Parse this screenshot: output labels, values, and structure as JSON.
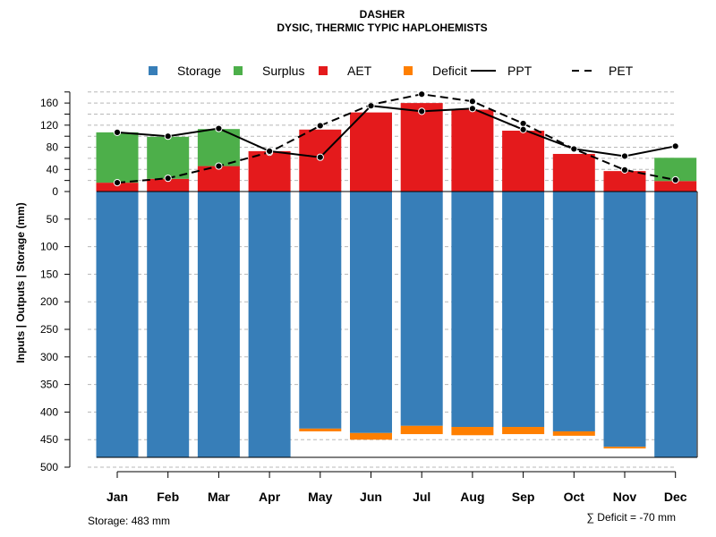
{
  "chart_data": {
    "type": "bar",
    "title": "DASHER",
    "subtitle": "DYSIC, THERMIC TYPIC HAPLOHEMISTS",
    "ylabel": "Inputs | Outputs | Storage    (mm)",
    "categories": [
      "Jan",
      "Feb",
      "Mar",
      "Apr",
      "May",
      "Jun",
      "Jul",
      "Aug",
      "Sep",
      "Oct",
      "Nov",
      "Dec"
    ],
    "ylim_upper": [
      0,
      180
    ],
    "ylim_lower": [
      0,
      500
    ],
    "upper_ticks": [
      0,
      40,
      80,
      120,
      160
    ],
    "upper_tick_labels": [
      "0",
      "40",
      "80",
      "120",
      "160"
    ],
    "lower_ticks": [
      0,
      50,
      100,
      150,
      200,
      250,
      300,
      350,
      400,
      450,
      500
    ],
    "lower_tick_labels": [
      "0",
      "50",
      "100",
      "150",
      "200",
      "250",
      "300",
      "350",
      "400",
      "450",
      "500"
    ],
    "upper_gridlines": [
      20,
      60,
      100,
      140,
      180
    ],
    "legend": {
      "placement": "top",
      "entries": [
        {
          "label": "Storage",
          "kind": "box",
          "color": "#377eb8"
        },
        {
          "label": "Surplus",
          "kind": "box",
          "color": "#4daf4a"
        },
        {
          "label": "AET",
          "kind": "box",
          "color": "#e41a1c"
        },
        {
          "label": "Deficit",
          "kind": "box",
          "color": "#ff7f00"
        },
        {
          "label": "PPT",
          "kind": "line",
          "dash": "solid"
        },
        {
          "label": "PET",
          "kind": "line",
          "dash": "dashed"
        }
      ]
    },
    "series": [
      {
        "name": "AET",
        "color": "#e41a1c",
        "values": [
          16,
          23,
          46,
          73,
          112,
          143,
          160,
          148,
          110,
          68,
          37,
          19
        ]
      },
      {
        "name": "Surplus",
        "color": "#4daf4a",
        "values": [
          91,
          76,
          67,
          0,
          0,
          0,
          0,
          0,
          0,
          0,
          0,
          42
        ]
      },
      {
        "name": "Storage",
        "color": "#377eb8",
        "values": [
          483,
          483,
          483,
          483,
          430,
          438,
          425,
          427,
          427,
          435,
          463,
          483
        ]
      },
      {
        "name": "Deficit",
        "color": "#ff7f00",
        "values": [
          0,
          0,
          0,
          0,
          5,
          12,
          15,
          15,
          13,
          8,
          3,
          0
        ]
      },
      {
        "name": "PPT",
        "color": "#000000",
        "values": [
          107,
          100,
          114,
          73,
          62,
          155,
          145,
          150,
          112,
          77,
          64,
          82
        ]
      },
      {
        "name": "PET",
        "color": "#000000",
        "values": [
          16,
          24,
          46,
          71,
          119,
          157,
          176,
          163,
          123,
          77,
          39,
          21
        ]
      }
    ],
    "footer_left": "Storage: 483 mm",
    "footer_right": "∑ Deficit = -70 mm"
  }
}
